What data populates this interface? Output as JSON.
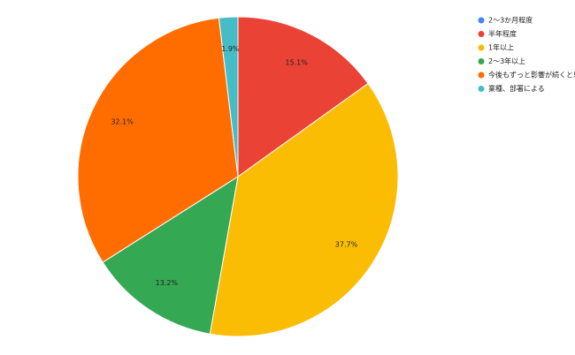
{
  "chart_data": {
    "type": "pie",
    "categories": [
      "2～3か月程度",
      "半年程度",
      "1年以上",
      "2～3年以上",
      "今後もずっと影響が続くと思う",
      "業種、部署による"
    ],
    "values": [
      0,
      15.1,
      37.7,
      13.2,
      32.1,
      1.9
    ],
    "value_labels": [
      null,
      "15.1%",
      "37.7%",
      "13.2%",
      "32.1%",
      "1.9%"
    ],
    "colors": [
      "#4285f4",
      "#ea4335",
      "#fbbc04",
      "#34a853",
      "#ff6d01",
      "#46bdc6"
    ],
    "legend": "right"
  }
}
